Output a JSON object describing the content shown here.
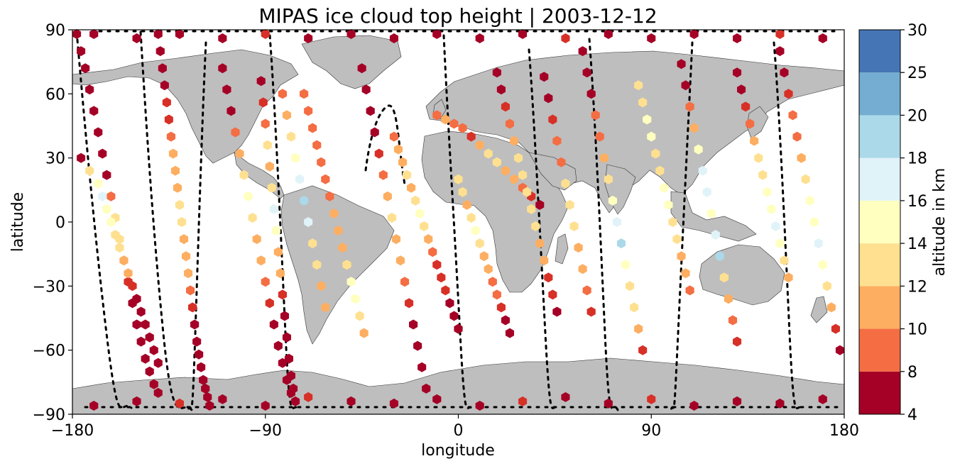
{
  "chart_data": {
    "type": "scatter",
    "title": "MIPAS ice cloud top height | 2003-12-12",
    "xlabel": "longitude",
    "ylabel": "latitude",
    "xlim": [
      -180,
      180
    ],
    "ylim": [
      -90,
      90
    ],
    "x_ticks": [
      "−180",
      "−90",
      "0",
      "90",
      "180"
    ],
    "y_ticks": [
      "−90",
      "−60",
      "−30",
      "0",
      "30",
      "60",
      "90"
    ],
    "colorbar": {
      "label": "altitude in km",
      "boundaries": [
        4,
        8,
        10,
        12,
        14,
        16,
        18,
        20,
        25,
        30
      ],
      "tick_labels": [
        "4",
        "8",
        "10",
        "12",
        "14",
        "16",
        "18",
        "20",
        "25",
        "30"
      ],
      "colors": [
        "#a50026",
        "#d73027",
        "#f46d43",
        "#fdae61",
        "#fee090",
        "#ffffbf",
        "#e0f3f8",
        "#abd9e9",
        "#74add1",
        "#4575b4",
        "#313695"
      ]
    },
    "land_color": "#bebebe",
    "series": [
      {
        "x": [
          -178,
          -176,
          -174,
          -172,
          -170,
          -168,
          -166,
          -164,
          -162,
          -160,
          -158,
          -156,
          -154,
          -152,
          -150,
          -148,
          -146,
          -144,
          -142,
          -140
        ],
        "y": [
          88,
          80,
          72,
          62,
          52,
          42,
          32,
          22,
          12,
          2,
          -8,
          -18,
          -28,
          -38,
          -48,
          -56,
          -64,
          -70,
          -76,
          -80
        ],
        "z": [
          6,
          6,
          7,
          6,
          6,
          6,
          6,
          7,
          11,
          15,
          14,
          12,
          8,
          6,
          6,
          6,
          6,
          6,
          6,
          6
        ]
      },
      {
        "x": [
          -176,
          -172,
          -168,
          -166,
          -164,
          -162,
          -160,
          -158,
          -156,
          -154,
          -152,
          -150,
          -148,
          -146,
          -144,
          -142,
          -140
        ],
        "y": [
          30,
          24,
          18,
          12,
          6,
          0,
          -6,
          -12,
          -18,
          -24,
          -30,
          -36,
          -42,
          -48,
          -54,
          -60,
          -66
        ],
        "z": [
          6,
          14,
          17,
          18,
          17,
          16,
          14,
          14,
          13,
          12,
          9,
          6,
          6,
          6,
          6,
          6,
          6
        ]
      },
      {
        "x": [
          -140,
          -139,
          -138,
          -137,
          -136,
          -135,
          -134,
          -133,
          -132,
          -131,
          -130,
          -129,
          -128,
          -127,
          -126,
          -125,
          -124,
          -123,
          -122,
          -121,
          -120,
          -119,
          -118,
          -117,
          -116
        ],
        "y": [
          88,
          80,
          72,
          64,
          56,
          48,
          40,
          32,
          24,
          16,
          8,
          0,
          -8,
          -16,
          -24,
          -32,
          -40,
          -48,
          -56,
          -62,
          -68,
          -74,
          -78,
          -82,
          -86
        ],
        "z": [
          6,
          6,
          6,
          6,
          8,
          9,
          11,
          12,
          12,
          13,
          15,
          14,
          13,
          12,
          12,
          11,
          9,
          6,
          6,
          6,
          6,
          6,
          6,
          6,
          6
        ]
      },
      {
        "x": [
          -110,
          -108,
          -106,
          -104,
          -102,
          -100,
          -98,
          -96,
          -94,
          -92,
          -90,
          -88,
          -86,
          -84,
          -82,
          -80,
          -78
        ],
        "y": [
          72,
          62,
          52,
          42,
          32,
          22,
          12,
          2,
          -8,
          -18,
          -28,
          -38,
          -48,
          -58,
          -66,
          -74,
          -80
        ],
        "z": [
          6,
          6,
          6,
          10,
          12,
          14,
          16,
          14,
          13,
          12,
          11,
          8,
          6,
          6,
          6,
          6,
          6
        ]
      },
      {
        "x": [
          -92,
          -91,
          -90,
          -89,
          -88,
          -87,
          -86,
          -85,
          -84,
          -83,
          -82,
          -81,
          -80,
          -79,
          -78,
          -77,
          -76
        ],
        "y": [
          66,
          56,
          46,
          36,
          26,
          16,
          6,
          -4,
          -14,
          -24,
          -34,
          -44,
          -54,
          -64,
          -72,
          -78,
          -84
        ],
        "z": [
          6,
          8,
          10,
          15,
          13,
          15,
          19,
          17,
          12,
          13,
          8,
          6,
          6,
          6,
          6,
          6,
          6
        ]
      },
      {
        "x": [
          -82,
          -80,
          -78,
          -76,
          -74,
          -72,
          -70,
          -68,
          -66,
          -64,
          -62
        ],
        "y": [
          60,
          50,
          40,
          30,
          20,
          10,
          0,
          -10,
          -20,
          -30,
          -40
        ],
        "z": [
          11,
          12,
          14,
          17,
          19,
          21,
          18,
          15,
          14,
          13,
          12
        ]
      },
      {
        "x": [
          -72,
          -70,
          -68,
          -66,
          -64,
          -62,
          -60,
          -58,
          -56,
          -54,
          -52,
          -50,
          -48,
          -46,
          -44
        ],
        "y": [
          60,
          52,
          44,
          36,
          28,
          20,
          12,
          4,
          -4,
          -12,
          -20,
          -28,
          -36,
          -44,
          -52
        ],
        "z": [
          11,
          11,
          10,
          10,
          10,
          10,
          11,
          12,
          13,
          13,
          14,
          16,
          17,
          14,
          12
        ]
      },
      {
        "x": [
          -45,
          -43,
          -41,
          -39,
          -37,
          -35,
          -33,
          -31,
          -29,
          -27,
          -25,
          -23,
          -21,
          -19,
          -17,
          -15
        ],
        "y": [
          72,
          62,
          52,
          42,
          32,
          22,
          12,
          2,
          -8,
          -18,
          -28,
          -38,
          -48,
          -58,
          -68,
          -78
        ],
        "z": [
          6,
          6,
          6,
          6,
          8,
          10,
          12,
          14,
          13,
          12,
          10,
          9,
          6,
          6,
          6,
          6
        ]
      },
      {
        "x": [
          -30,
          -28,
          -26,
          -24,
          -22,
          -20,
          -18,
          -16,
          -14,
          -12,
          -10,
          -8,
          -6,
          -4,
          -2,
          0
        ],
        "y": [
          40,
          34,
          28,
          22,
          16,
          10,
          4,
          -2,
          -8,
          -14,
          -20,
          -26,
          -32,
          -38,
          -44,
          -50
        ],
        "z": [
          11,
          12,
          13,
          14,
          13,
          15,
          16,
          14,
          12,
          10,
          9,
          8,
          8,
          6,
          6,
          6
        ]
      },
      {
        "x": [
          -10,
          -6,
          -2,
          2,
          6,
          10,
          14,
          18,
          22,
          26,
          30,
          34,
          38
        ],
        "y": [
          50,
          48,
          46,
          44,
          40,
          36,
          32,
          28,
          24,
          20,
          16,
          12,
          8
        ],
        "z": [
          11,
          12,
          11,
          10,
          9,
          12,
          15,
          14,
          13,
          12,
          11,
          9,
          6
        ]
      },
      {
        "x": [
          0,
          2,
          4,
          6,
          8,
          10,
          12,
          14,
          16,
          18,
          20,
          22,
          24
        ],
        "y": [
          20,
          14,
          8,
          2,
          -4,
          -10,
          -16,
          -22,
          -28,
          -34,
          -40,
          -46,
          -52
        ],
        "z": [
          15,
          14,
          13,
          15,
          16,
          14,
          13,
          12,
          11,
          10,
          9,
          6,
          6
        ]
      },
      {
        "x": [
          18,
          20,
          22,
          24,
          26,
          28,
          30,
          32,
          34,
          36,
          38,
          40,
          42,
          44,
          46
        ],
        "y": [
          70,
          62,
          54,
          46,
          38,
          30,
          22,
          14,
          6,
          -2,
          -10,
          -18,
          -26,
          -34,
          -42
        ],
        "z": [
          6,
          6,
          8,
          10,
          12,
          14,
          15,
          15,
          14,
          14,
          13,
          12,
          9,
          8,
          6
        ]
      },
      {
        "x": [
          40,
          42,
          44,
          46,
          48,
          50,
          52,
          54,
          56,
          58,
          60,
          62
        ],
        "y": [
          68,
          58,
          48,
          38,
          28,
          18,
          8,
          -2,
          -12,
          -22,
          -32,
          -42
        ],
        "z": [
          6,
          6,
          8,
          10,
          11,
          14,
          15,
          14,
          13,
          12,
          10,
          8
        ]
      },
      {
        "x": [
          58,
          60,
          62,
          64,
          66,
          68,
          70,
          72,
          74,
          76,
          78,
          80,
          82,
          84,
          86
        ],
        "y": [
          80,
          70,
          60,
          50,
          40,
          30,
          20,
          10,
          0,
          -10,
          -20,
          -30,
          -40,
          -50,
          -60
        ],
        "z": [
          6,
          6,
          7,
          10,
          11,
          12,
          14,
          16,
          18,
          20,
          17,
          15,
          14,
          12,
          8
        ]
      },
      {
        "x": [
          84,
          86,
          88,
          90,
          92,
          94,
          96,
          98,
          100,
          102,
          104,
          106,
          108
        ],
        "y": [
          64,
          56,
          48,
          40,
          32,
          24,
          16,
          8,
          0,
          -8,
          -16,
          -24,
          -32
        ],
        "z": [
          14,
          15,
          16,
          16,
          15,
          15,
          17,
          16,
          15,
          14,
          13,
          12,
          11
        ]
      },
      {
        "x": [
          104,
          106,
          108,
          110,
          112,
          114,
          116,
          118,
          120,
          122,
          124,
          126,
          128,
          130
        ],
        "y": [
          74,
          64,
          54,
          44,
          34,
          24,
          14,
          4,
          -6,
          -16,
          -26,
          -36,
          -46,
          -56
        ],
        "z": [
          6,
          6,
          11,
          13,
          16,
          18,
          18,
          17,
          19,
          20,
          14,
          12,
          10,
          8
        ]
      },
      {
        "x": [
          130,
          132,
          134,
          136,
          138,
          140,
          142,
          144,
          146,
          148,
          150,
          152,
          154
        ],
        "y": [
          70,
          62,
          54,
          46,
          38,
          30,
          22,
          14,
          6,
          -2,
          -10,
          -18,
          -26
        ],
        "z": [
          6,
          6,
          8,
          10,
          13,
          14,
          15,
          16,
          17,
          18,
          17,
          15,
          13
        ]
      },
      {
        "x": [
          150,
          152,
          154,
          156,
          158,
          160,
          162,
          164,
          166,
          168,
          170,
          172,
          174,
          176,
          178
        ],
        "y": [
          80,
          70,
          60,
          50,
          40,
          30,
          20,
          10,
          0,
          -10,
          -20,
          -30,
          -40,
          -50,
          -60
        ],
        "z": [
          6,
          6,
          8,
          10,
          11,
          12,
          14,
          16,
          17,
          18,
          17,
          15,
          12,
          8,
          6
        ]
      },
      {
        "x": [
          -170,
          -150,
          -130,
          -110,
          -90,
          -70,
          -50,
          -30,
          -10,
          10,
          30,
          50,
          70,
          90,
          110,
          130,
          150,
          170
        ],
        "y": [
          -86,
          -84,
          -85,
          -83,
          -86,
          -82,
          -84,
          -85,
          -83,
          -86,
          -84,
          -82,
          -85,
          -83,
          -86,
          -84,
          -85,
          -83
        ],
        "z": [
          6,
          6,
          8,
          6,
          6,
          9,
          6,
          6,
          6,
          6,
          8,
          6,
          6,
          9,
          6,
          6,
          6,
          6
        ]
      },
      {
        "x": [
          -170,
          -150,
          -130,
          -110,
          -90,
          -70,
          -50,
          -30,
          -10,
          10,
          30,
          50,
          70,
          90,
          110,
          130,
          150,
          170
        ],
        "y": [
          88,
          86,
          88,
          86,
          88,
          86,
          88,
          86,
          88,
          86,
          88,
          86,
          88,
          86,
          88,
          86,
          88,
          86
        ],
        "z": [
          6,
          6,
          6,
          6,
          8,
          6,
          6,
          6,
          6,
          6,
          6,
          8,
          6,
          6,
          6,
          6,
          9,
          6
        ]
      }
    ]
  }
}
